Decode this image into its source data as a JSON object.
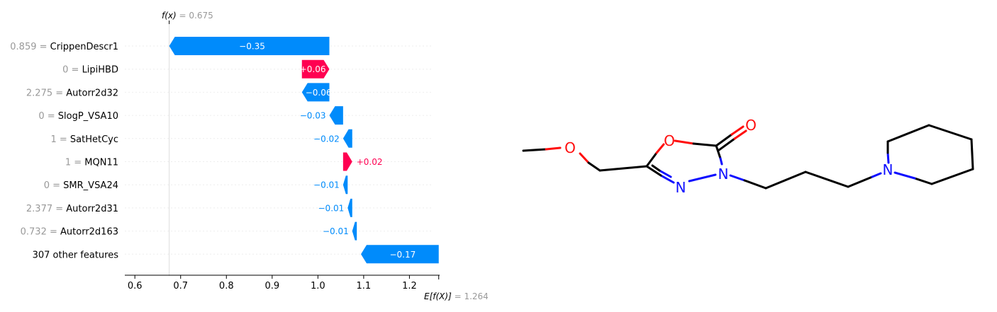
{
  "chart_data": {
    "type": "waterfall",
    "fx": {
      "symbol": "f(x)",
      "value": "0.675"
    },
    "efx": {
      "symbol": "E[f(X)]",
      "value": "1.264"
    },
    "features": [
      {
        "value": "0.859",
        "name": "CrippenDescr1",
        "contribution": -0.35,
        "label": "−0.35"
      },
      {
        "value": "0",
        "name": "LipiHBD",
        "contribution": 0.06,
        "label": "+0.06"
      },
      {
        "value": "2.275",
        "name": "Autorr2d32",
        "contribution": -0.06,
        "label": "−0.06"
      },
      {
        "value": "0",
        "name": "SlogP_VSA10",
        "contribution": -0.03,
        "label": "−0.03"
      },
      {
        "value": "1",
        "name": "SatHetCyc",
        "contribution": -0.02,
        "label": "−0.02"
      },
      {
        "value": "1",
        "name": "MQN11",
        "contribution": 0.02,
        "label": "+0.02"
      },
      {
        "value": "0",
        "name": "SMR_VSA24",
        "contribution": -0.01,
        "label": "−0.01"
      },
      {
        "value": "2.377",
        "name": "Autorr2d31",
        "contribution": -0.01,
        "label": "−0.01"
      },
      {
        "value": "0.732",
        "name": "Autorr2d163",
        "contribution": -0.01,
        "label": "−0.01"
      },
      {
        "value": "",
        "name": "307 other features",
        "contribution": -0.17,
        "label": "−0.17",
        "start": 1.264
      }
    ],
    "xticks": [
      "0.6",
      "0.7",
      "0.8",
      "0.9",
      "1.0",
      "1.1",
      "1.2"
    ],
    "xlim": [
      0.578,
      1.266
    ],
    "colors": {
      "negative": "#008bfb",
      "positive": "#ff0051",
      "muted": "#999999"
    }
  },
  "molecule": {
    "atoms": [
      {
        "id": "O1",
        "symbol": "O",
        "color": "#ff0d0d"
      },
      {
        "id": "O2",
        "symbol": "O",
        "color": "#ff0d0d"
      },
      {
        "id": "O3",
        "symbol": "O",
        "color": "#ff0d0d"
      },
      {
        "id": "N1",
        "symbol": "N",
        "color": "#0d0dff"
      },
      {
        "id": "N2",
        "symbol": "N",
        "color": "#0d0dff"
      },
      {
        "id": "N3",
        "symbol": "N",
        "color": "#0d0dff"
      }
    ]
  }
}
